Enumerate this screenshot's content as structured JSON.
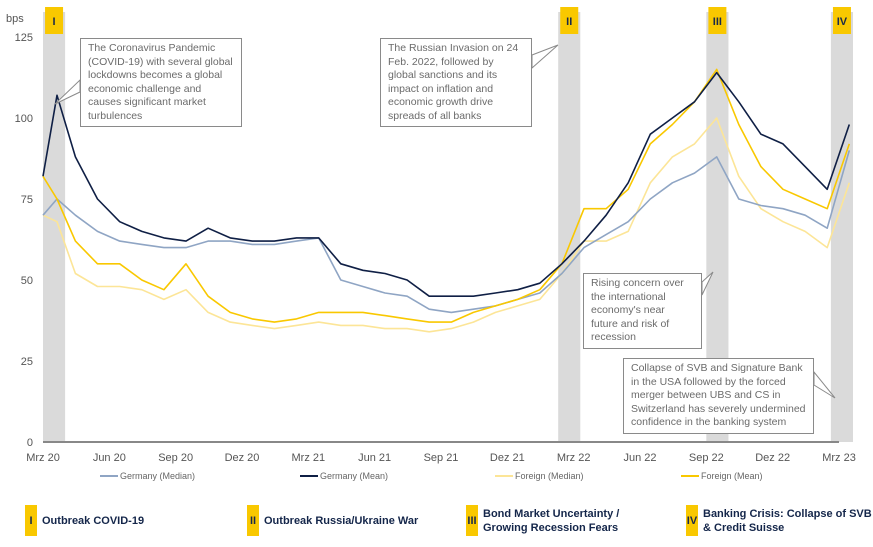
{
  "chart_data": {
    "type": "line",
    "ylabel": "bps",
    "ylim": [
      0,
      125
    ],
    "yticks": [
      0,
      25,
      50,
      75,
      100,
      125
    ],
    "xticks": [
      "Mrz 20",
      "Jun 20",
      "Sep 20",
      "Dez 20",
      "Mrz 21",
      "Jun 21",
      "Sep 21",
      "Dez 21",
      "Mrz 22",
      "Jun 22",
      "Sep 22",
      "Dez 22",
      "Mrz 23"
    ],
    "x": [
      "2020-03-01",
      "2020-03-20",
      "2020-04-15",
      "2020-05-15",
      "2020-06-15",
      "2020-07-15",
      "2020-08-15",
      "2020-09-15",
      "2020-10-15",
      "2020-11-15",
      "2020-12-15",
      "2021-01-15",
      "2021-02-15",
      "2021-03-15",
      "2021-04-15",
      "2021-05-15",
      "2021-06-15",
      "2021-07-15",
      "2021-08-15",
      "2021-09-15",
      "2021-10-15",
      "2021-11-15",
      "2021-12-15",
      "2022-01-15",
      "2022-02-15",
      "2022-03-15",
      "2022-04-15",
      "2022-05-15",
      "2022-06-15",
      "2022-07-15",
      "2022-08-15",
      "2022-09-15",
      "2022-10-15",
      "2022-11-15",
      "2022-12-15",
      "2023-01-15",
      "2023-02-15",
      "2023-03-15"
    ],
    "series": [
      {
        "name": "Germany (Median)",
        "color": "#8fa5c4",
        "values": [
          70,
          75,
          70,
          65,
          62,
          61,
          60,
          60,
          62,
          62,
          61,
          61,
          62,
          63,
          50,
          48,
          46,
          45,
          41,
          40,
          41,
          42,
          44,
          46,
          52,
          60,
          64,
          68,
          75,
          80,
          83,
          88,
          75,
          73,
          72,
          70,
          66,
          90
        ]
      },
      {
        "name": "Germany (Mean)",
        "color": "#0f1f45",
        "values": [
          82,
          107,
          88,
          75,
          68,
          65,
          63,
          62,
          66,
          63,
          62,
          62,
          63,
          63,
          55,
          53,
          52,
          50,
          45,
          45,
          45,
          46,
          47,
          49,
          55,
          62,
          70,
          80,
          95,
          100,
          105,
          114,
          105,
          95,
          92,
          85,
          78,
          98
        ]
      },
      {
        "name": "Foreign (Median)",
        "color": "#fce597",
        "values": [
          70,
          68,
          52,
          48,
          48,
          47,
          44,
          47,
          40,
          37,
          36,
          35,
          36,
          37,
          36,
          36,
          35,
          35,
          34,
          35,
          37,
          40,
          42,
          44,
          52,
          62,
          62,
          65,
          80,
          88,
          92,
          100,
          82,
          72,
          68,
          65,
          60,
          80
        ]
      },
      {
        "name": "Foreign (Mean)",
        "color": "#f9c800",
        "values": [
          82,
          75,
          62,
          55,
          55,
          50,
          47,
          55,
          45,
          40,
          38,
          37,
          38,
          40,
          40,
          40,
          39,
          38,
          37,
          37,
          40,
          42,
          44,
          47,
          55,
          72,
          72,
          78,
          92,
          98,
          105,
          115,
          98,
          85,
          78,
          75,
          72,
          92
        ]
      }
    ],
    "events": [
      {
        "label": "I",
        "start": "2020-03-01",
        "end": "2020-04-01"
      },
      {
        "label": "II",
        "start": "2022-02-10",
        "end": "2022-03-10"
      },
      {
        "label": "III",
        "start": "2022-09-01",
        "end": "2022-10-01"
      },
      {
        "label": "IV",
        "start": "2023-02-20",
        "end": "2023-03-20"
      }
    ],
    "annotations": [
      "The Coronavirus Pandemic (COVID-19) with several global lockdowns becomes a global economic challenge and causes significant market turbulences",
      "The Russian Invasion on 24 Feb. 2022, followed by global sanctions and its impact on inflation and economic growth drive spreads of all banks",
      "Rising concern over the international economy's near future and risk of recession",
      "Collapse of SVB and Signature Bank in the USA followed by the forced merger between UBS and CS in Switzerland has severely undermined confidence in the banking system"
    ],
    "grid": false,
    "legend": "bottom"
  },
  "event_legend": [
    {
      "badge": "I",
      "text": "Outbreak COVID-19"
    },
    {
      "badge": "II",
      "text": "Outbreak Russia/Ukraine War"
    },
    {
      "badge": "III",
      "text": "Bond Market Uncertainty / Growing Recession Fears"
    },
    {
      "badge": "IV",
      "text": "Banking Crisis: Collapse of SVB & Credit Suisse"
    }
  ]
}
